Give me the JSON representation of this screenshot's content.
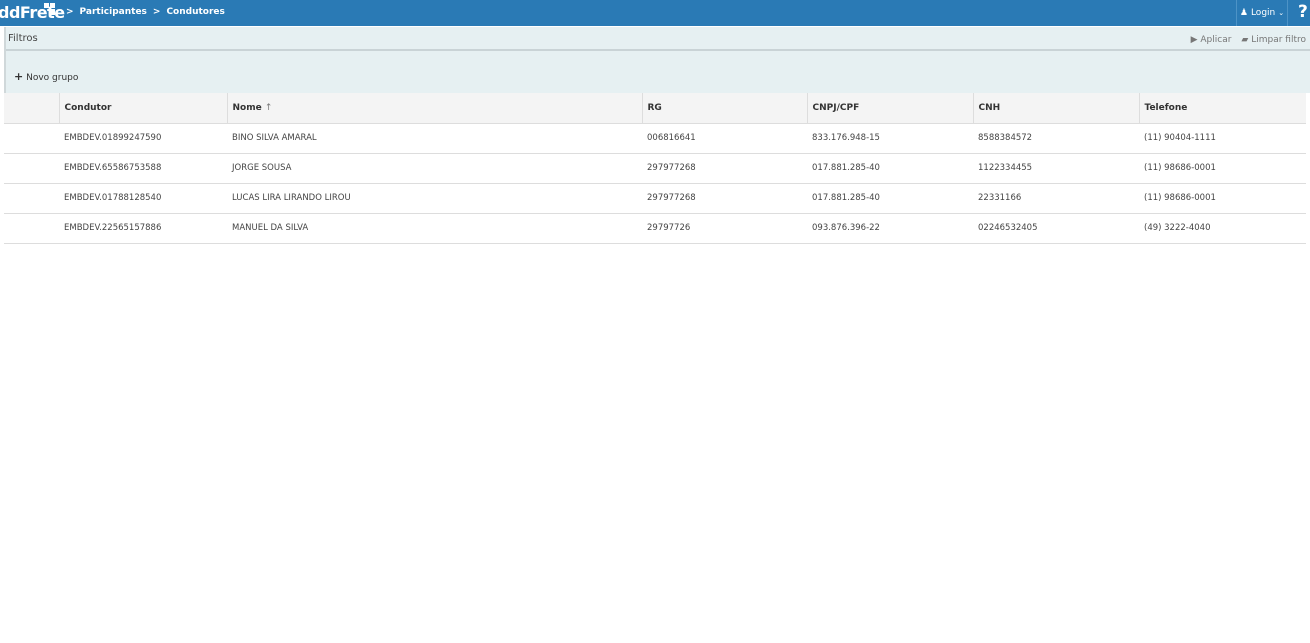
{
  "header": {
    "logo": "ddFrete",
    "breadcrumb": [
      "Participantes",
      "Condutores"
    ],
    "login": "Login",
    "help": "?"
  },
  "filters": {
    "title": "Filtros",
    "apply": "Aplicar",
    "clear": "Limpar filtro",
    "new_group": "Novo grupo"
  },
  "table": {
    "columns": [
      "",
      "Condutor",
      "Nome",
      "RG",
      "CNPJ/CPF",
      "CNH",
      "Telefone"
    ],
    "sort_indicator": "↑",
    "rows": [
      [
        "EMBDEV.01899247590",
        "BINO SILVA AMARAL",
        "006816641",
        "833.176.948-15",
        "8588384572",
        "(11) 90404-1111"
      ],
      [
        "EMBDEV.65586753588",
        "JORGE SOUSA",
        "297977268",
        "017.881.285-40",
        "1122334455",
        "(11) 98686-0001"
      ],
      [
        "EMBDEV.01788128540",
        "LUCAS LIRA LIRANDO LIROU",
        "297977268",
        "017.881.285-40",
        "22331166",
        "(11) 98686-0001"
      ],
      [
        "EMBDEV.22565157886",
        "MANUEL DA SILVA",
        "29797726",
        "093.876.396-22",
        "02246532405",
        "(49) 3222-4040"
      ]
    ]
  },
  "colors": {
    "header": "#2a7ab5",
    "filters_bg": "#e6f0f2"
  }
}
